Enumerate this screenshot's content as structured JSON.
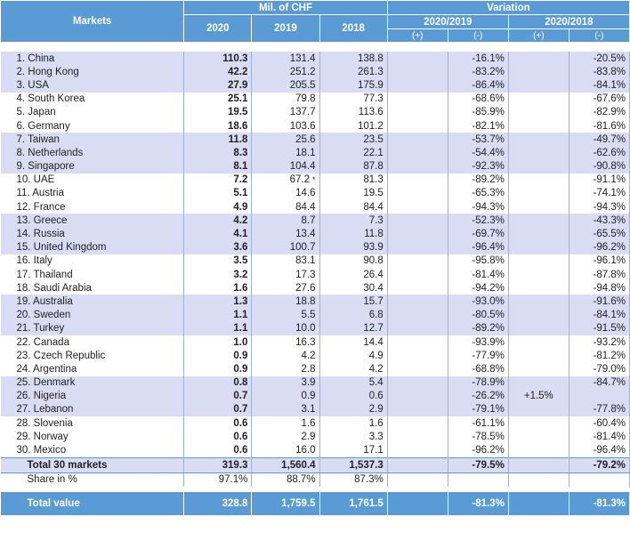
{
  "header": {
    "markets": "Markets",
    "mil_chf": "Mil. of CHF",
    "variation": "Variation",
    "years": [
      "2020",
      "2019",
      "2018"
    ],
    "periods": [
      "2020/2019",
      "2020/2018"
    ],
    "plus": "(+)",
    "minus": "(-)"
  },
  "rows": [
    {
      "market": "1. China",
      "v2020": "110.3",
      "v2019": "131.4",
      "v2018": "138.8",
      "a_plus": "",
      "a_minus": "-16.1%",
      "b_plus": "",
      "b_minus": "-20.5%",
      "note": ""
    },
    {
      "market": "2. Hong Kong",
      "v2020": "42.2",
      "v2019": "251.2",
      "v2018": "261.3",
      "a_plus": "",
      "a_minus": "-83.2%",
      "b_plus": "",
      "b_minus": "-83.8%",
      "note": ""
    },
    {
      "market": "3. USA",
      "v2020": "27.9",
      "v2019": "205.5",
      "v2018": "175.9",
      "a_plus": "",
      "a_minus": "-86.4%",
      "b_plus": "",
      "b_minus": "-84.1%",
      "note": ""
    },
    {
      "market": "4. South Korea",
      "v2020": "25.1",
      "v2019": "79.8",
      "v2018": "77.3",
      "a_plus": "",
      "a_minus": "-68.6%",
      "b_plus": "",
      "b_minus": "-67.6%",
      "note": ""
    },
    {
      "market": "5. Japan",
      "v2020": "19.5",
      "v2019": "137.7",
      "v2018": "113.6",
      "a_plus": "",
      "a_minus": "-85.9%",
      "b_plus": "",
      "b_minus": "-82.9%",
      "note": ""
    },
    {
      "market": "6. Germany",
      "v2020": "18.6",
      "v2019": "103.6",
      "v2018": "101.2",
      "a_plus": "",
      "a_minus": "-82.1%",
      "b_plus": "",
      "b_minus": "-81.6%",
      "note": ""
    },
    {
      "market": "7. Taiwan",
      "v2020": "11.8",
      "v2019": "25.6",
      "v2018": "23.5",
      "a_plus": "",
      "a_minus": "-53.7%",
      "b_plus": "",
      "b_minus": "-49.7%",
      "note": ""
    },
    {
      "market": "8. Netherlands",
      "v2020": "8.3",
      "v2019": "18.1",
      "v2018": "22.1",
      "a_plus": "",
      "a_minus": "-54.4%",
      "b_plus": "",
      "b_minus": "-62.6%",
      "note": ""
    },
    {
      "market": "9. Singapore",
      "v2020": "8.1",
      "v2019": "104.4",
      "v2018": "87.8",
      "a_plus": "",
      "a_minus": "-92.3%",
      "b_plus": "",
      "b_minus": "-90.8%",
      "note": ""
    },
    {
      "market": "10. UAE",
      "v2020": "7.2",
      "v2019": "67.2",
      "v2018": "81.3",
      "a_plus": "",
      "a_minus": "-89.2%",
      "b_plus": "",
      "b_minus": "-91.1%",
      "note": "*"
    },
    {
      "market": "11. Austria",
      "v2020": "5.1",
      "v2019": "14.6",
      "v2018": "19.5",
      "a_plus": "",
      "a_minus": "-65.3%",
      "b_plus": "",
      "b_minus": "-74.1%",
      "note": ""
    },
    {
      "market": "12. France",
      "v2020": "4.9",
      "v2019": "84.4",
      "v2018": "84.4",
      "a_plus": "",
      "a_minus": "-94.3%",
      "b_plus": "",
      "b_minus": "-94.3%",
      "note": ""
    },
    {
      "market": "13. Greece",
      "v2020": "4.2",
      "v2019": "8.7",
      "v2018": "7.3",
      "a_plus": "",
      "a_minus": "-52.3%",
      "b_plus": "",
      "b_minus": "-43.3%",
      "note": ""
    },
    {
      "market": "14. Russia",
      "v2020": "4.1",
      "v2019": "13.4",
      "v2018": "11.8",
      "a_plus": "",
      "a_minus": "-69.7%",
      "b_plus": "",
      "b_minus": "-65.5%",
      "note": ""
    },
    {
      "market": "15. United Kingdom",
      "v2020": "3.6",
      "v2019": "100.7",
      "v2018": "93.9",
      "a_plus": "",
      "a_minus": "-96.4%",
      "b_plus": "",
      "b_minus": "-96.2%",
      "note": ""
    },
    {
      "market": "16. Italy",
      "v2020": "3.5",
      "v2019": "83.1",
      "v2018": "90.8",
      "a_plus": "",
      "a_minus": "-95.8%",
      "b_plus": "",
      "b_minus": "-96.1%",
      "note": ""
    },
    {
      "market": "17. Thailand",
      "v2020": "3.2",
      "v2019": "17.3",
      "v2018": "26.4",
      "a_plus": "",
      "a_minus": "-81.4%",
      "b_plus": "",
      "b_minus": "-87.8%",
      "note": ""
    },
    {
      "market": "18. Saudi Arabia",
      "v2020": "1.6",
      "v2019": "27.6",
      "v2018": "30.4",
      "a_plus": "",
      "a_minus": "-94.2%",
      "b_plus": "",
      "b_minus": "-94.8%",
      "note": ""
    },
    {
      "market": "19. Australia",
      "v2020": "1.3",
      "v2019": "18.8",
      "v2018": "15.7",
      "a_plus": "",
      "a_minus": "-93.0%",
      "b_plus": "",
      "b_minus": "-91.6%",
      "note": ""
    },
    {
      "market": "20. Sweden",
      "v2020": "1.1",
      "v2019": "5.5",
      "v2018": "6.8",
      "a_plus": "",
      "a_minus": "-80.5%",
      "b_plus": "",
      "b_minus": "-84.1%",
      "note": ""
    },
    {
      "market": "21. Turkey",
      "v2020": "1.1",
      "v2019": "10.0",
      "v2018": "12.7",
      "a_plus": "",
      "a_minus": "-89.2%",
      "b_plus": "",
      "b_minus": "-91.5%",
      "note": ""
    },
    {
      "market": "22. Canada",
      "v2020": "1.0",
      "v2019": "16.3",
      "v2018": "14.4",
      "a_plus": "",
      "a_minus": "-93.9%",
      "b_plus": "",
      "b_minus": "-93.2%",
      "note": ""
    },
    {
      "market": "23. Czech Republic",
      "v2020": "0.9",
      "v2019": "4.2",
      "v2018": "4.9",
      "a_plus": "",
      "a_minus": "-77.9%",
      "b_plus": "",
      "b_minus": "-81.2%",
      "note": ""
    },
    {
      "market": "24. Argentina",
      "v2020": "0.9",
      "v2019": "2.8",
      "v2018": "4.2",
      "a_plus": "",
      "a_minus": "-68.8%",
      "b_plus": "",
      "b_minus": "-79.0%",
      "note": ""
    },
    {
      "market": "25. Denmark",
      "v2020": "0.8",
      "v2019": "3.9",
      "v2018": "5.4",
      "a_plus": "",
      "a_minus": "-78.9%",
      "b_plus": "",
      "b_minus": "-84.7%",
      "note": ""
    },
    {
      "market": "26. Nigeria",
      "v2020": "0.7",
      "v2019": "0.9",
      "v2018": "0.6",
      "a_plus": "",
      "a_minus": "-26.2%",
      "b_plus": "+1.5%",
      "b_minus": "",
      "note": ""
    },
    {
      "market": "27. Lebanon",
      "v2020": "0.7",
      "v2019": "3.1",
      "v2018": "2.9",
      "a_plus": "",
      "a_minus": "-79.1%",
      "b_plus": "",
      "b_minus": "-77.8%",
      "note": ""
    },
    {
      "market": "28. Slovenia",
      "v2020": "0.6",
      "v2019": "1.6",
      "v2018": "1.6",
      "a_plus": "",
      "a_minus": "-61.1%",
      "b_plus": "",
      "b_minus": "-60.4%",
      "note": ""
    },
    {
      "market": "29. Norway",
      "v2020": "0.6",
      "v2019": "2.9",
      "v2018": "3.3",
      "a_plus": "",
      "a_minus": "-78.5%",
      "b_plus": "",
      "b_minus": "-81.4%",
      "note": ""
    },
    {
      "market": "30. Mexico",
      "v2020": "0.6",
      "v2019": "16.0",
      "v2018": "17.1",
      "a_plus": "",
      "a_minus": "-96.2%",
      "b_plus": "",
      "b_minus": "-96.4%",
      "note": ""
    }
  ],
  "total30": {
    "label": "Total 30 markets",
    "v2020": "319.3",
    "v2019": "1,560.4",
    "v2018": "1,537.3",
    "a_minus": "-79.5%",
    "b_minus": "-79.2%"
  },
  "share": {
    "label": "Share in %",
    "v2020": "97.1%",
    "v2019": "88.7%",
    "v2018": "87.3%"
  },
  "grand": {
    "label": "Total value",
    "v2020": "328.8",
    "v2019": "1,759.5",
    "v2018": "1,761.5",
    "a_minus": "-81.3%",
    "b_minus": "-81.3%"
  },
  "colors": {
    "header": "#5b9bd5",
    "band": "#d9dcf2"
  }
}
